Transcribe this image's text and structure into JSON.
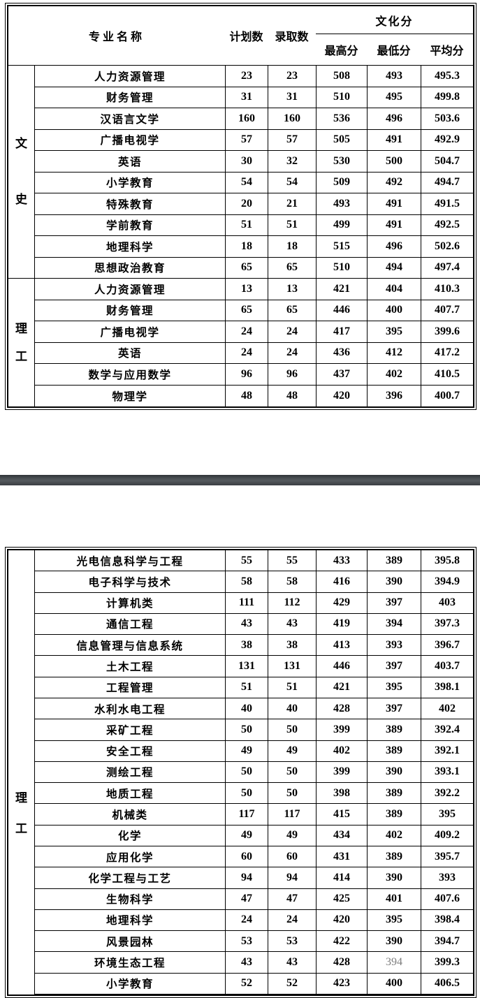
{
  "header": {
    "major": "专业名称",
    "plan": "计划数",
    "admit": "录取数",
    "culture": "文化分",
    "max": "最高分",
    "min": "最低分",
    "avg": "平均分"
  },
  "colors": {
    "table_border": "#000000",
    "page_divider": "#4b5054",
    "muted_number": "#7d7d7d"
  },
  "table1": {
    "groups": [
      {
        "chars": [
          "文",
          "史"
        ],
        "rows_spanned": 10
      },
      {
        "chars": [
          "理",
          "工"
        ],
        "rows_spanned": 6
      }
    ],
    "rows": [
      {
        "major": "人力资源管理",
        "plan": "23",
        "admit": "23",
        "max": "508",
        "min": "493",
        "avg": "495.3"
      },
      {
        "major": "财务管理",
        "plan": "31",
        "admit": "31",
        "max": "510",
        "min": "495",
        "avg": "499.8"
      },
      {
        "major": "汉语言文学",
        "plan": "160",
        "admit": "160",
        "max": "536",
        "min": "496",
        "avg": "503.6"
      },
      {
        "major": "广播电视学",
        "plan": "57",
        "admit": "57",
        "max": "505",
        "min": "491",
        "avg": "492.9"
      },
      {
        "major": "英语",
        "plan": "30",
        "admit": "32",
        "max": "530",
        "min": "500",
        "avg": "504.7"
      },
      {
        "major": "小学教育",
        "plan": "54",
        "admit": "54",
        "max": "509",
        "min": "492",
        "avg": "494.7"
      },
      {
        "major": "特殊教育",
        "plan": "20",
        "admit": "21",
        "max": "493",
        "min": "491",
        "avg": "491.5"
      },
      {
        "major": "学前教育",
        "plan": "51",
        "admit": "51",
        "max": "499",
        "min": "491",
        "avg": "492.5"
      },
      {
        "major": "地理科学",
        "plan": "18",
        "admit": "18",
        "max": "515",
        "min": "496",
        "avg": "502.6"
      },
      {
        "major": "思想政治教育",
        "plan": "65",
        "admit": "65",
        "max": "510",
        "min": "494",
        "avg": "497.4"
      },
      {
        "major": "人力资源管理",
        "plan": "13",
        "admit": "13",
        "max": "421",
        "min": "404",
        "avg": "410.3"
      },
      {
        "major": "财务管理",
        "plan": "65",
        "admit": "65",
        "max": "446",
        "min": "400",
        "avg": "407.7"
      },
      {
        "major": "广播电视学",
        "plan": "24",
        "admit": "24",
        "max": "417",
        "min": "395",
        "avg": "399.6"
      },
      {
        "major": "英语",
        "plan": "24",
        "admit": "24",
        "max": "436",
        "min": "412",
        "avg": "417.2"
      },
      {
        "major": "数学与应用数学",
        "plan": "96",
        "admit": "96",
        "max": "437",
        "min": "402",
        "avg": "410.5"
      },
      {
        "major": "物理学",
        "plan": "48",
        "admit": "48",
        "max": "420",
        "min": "396",
        "avg": "400.7"
      }
    ]
  },
  "table2": {
    "groups": [
      {
        "chars": [
          "理",
          "工"
        ],
        "rows_spanned": 21
      }
    ],
    "rows": [
      {
        "major": "光电信息科学与工程",
        "plan": "55",
        "admit": "55",
        "max": "433",
        "min": "389",
        "avg": "395.8"
      },
      {
        "major": "电子科学与技术",
        "plan": "58",
        "admit": "58",
        "max": "416",
        "min": "390",
        "avg": "394.9"
      },
      {
        "major": "计算机类",
        "plan": "111",
        "admit": "112",
        "max": "429",
        "min": "397",
        "avg": "403"
      },
      {
        "major": "通信工程",
        "plan": "43",
        "admit": "43",
        "max": "419",
        "min": "394",
        "avg": "397.3"
      },
      {
        "major": "信息管理与信息系统",
        "plan": "38",
        "admit": "38",
        "max": "413",
        "min": "393",
        "avg": "396.7"
      },
      {
        "major": "土木工程",
        "plan": "131",
        "admit": "131",
        "max": "446",
        "min": "397",
        "avg": "403.7"
      },
      {
        "major": "工程管理",
        "plan": "51",
        "admit": "51",
        "max": "421",
        "min": "395",
        "avg": "398.1"
      },
      {
        "major": "水利水电工程",
        "plan": "40",
        "admit": "40",
        "max": "428",
        "min": "397",
        "avg": "402"
      },
      {
        "major": "采矿工程",
        "plan": "50",
        "admit": "50",
        "max": "399",
        "min": "389",
        "avg": "392.4"
      },
      {
        "major": "安全工程",
        "plan": "49",
        "admit": "49",
        "max": "402",
        "min": "389",
        "avg": "392.1"
      },
      {
        "major": "测绘工程",
        "plan": "50",
        "admit": "50",
        "max": "399",
        "min": "390",
        "avg": "393.1"
      },
      {
        "major": "地质工程",
        "plan": "50",
        "admit": "50",
        "max": "398",
        "min": "389",
        "avg": "392.2"
      },
      {
        "major": "机械类",
        "plan": "117",
        "admit": "117",
        "max": "415",
        "min": "389",
        "avg": "395"
      },
      {
        "major": "化学",
        "plan": "49",
        "admit": "49",
        "max": "434",
        "min": "402",
        "avg": "409.2"
      },
      {
        "major": "应用化学",
        "plan": "60",
        "admit": "60",
        "max": "431",
        "min": "389",
        "avg": "395.7"
      },
      {
        "major": "化学工程与工艺",
        "plan": "94",
        "admit": "94",
        "max": "414",
        "min": "390",
        "avg": "393"
      },
      {
        "major": "生物科学",
        "plan": "47",
        "admit": "47",
        "max": "425",
        "min": "401",
        "avg": "407.6"
      },
      {
        "major": "地理科学",
        "plan": "24",
        "admit": "24",
        "max": "420",
        "min": "395",
        "avg": "398.4"
      },
      {
        "major": "风景园林",
        "plan": "53",
        "admit": "53",
        "max": "422",
        "min": "390",
        "avg": "394.7"
      },
      {
        "major": "环境生态工程",
        "plan": "43",
        "admit": "43",
        "max": "428",
        "min": "394",
        "min_gray": true,
        "avg": "399.3"
      },
      {
        "major": "小学教育",
        "plan": "52",
        "admit": "52",
        "max": "423",
        "min": "400",
        "avg": "406.5"
      }
    ]
  }
}
